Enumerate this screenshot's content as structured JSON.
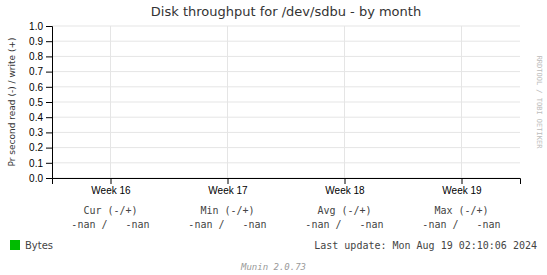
{
  "chart_data": {
    "type": "line",
    "title": "Disk throughput for /dev/sdbu - by month",
    "y_label": "Pr second read (-) / write (+)",
    "categories": [
      "Week 16",
      "Week 17",
      "Week 18",
      "Week 19"
    ],
    "series": [
      {
        "name": "Bytes",
        "color": "#00bb00",
        "values": [
          null,
          null,
          null,
          null
        ]
      }
    ],
    "ylim": [
      0.0,
      1.0
    ],
    "yticks": [
      {
        "value": 0.0,
        "label": "0.0"
      },
      0.1,
      0.2,
      0.3,
      0.4,
      0.5,
      0.6,
      0.7,
      0.8,
      0.9,
      {
        "value": 1.0,
        "label": "1.0"
      }
    ],
    "grid": true,
    "legend": "bottom-left",
    "annotations": {
      "stats_headers": [
        "Cur (-/+)",
        "Min (-/+)",
        "Avg (-/+)",
        "Max (-/+)"
      ],
      "stats_values": [
        "-nan /   -nan",
        "-nan /   -nan",
        "-nan /   -nan",
        "-nan /   -nan"
      ],
      "last_update": "Last update: Mon Aug 19 02:10:06 2024",
      "version": "Munin 2.0.73",
      "watermark": "RRDTOOL / TOBI OETIKER"
    }
  }
}
